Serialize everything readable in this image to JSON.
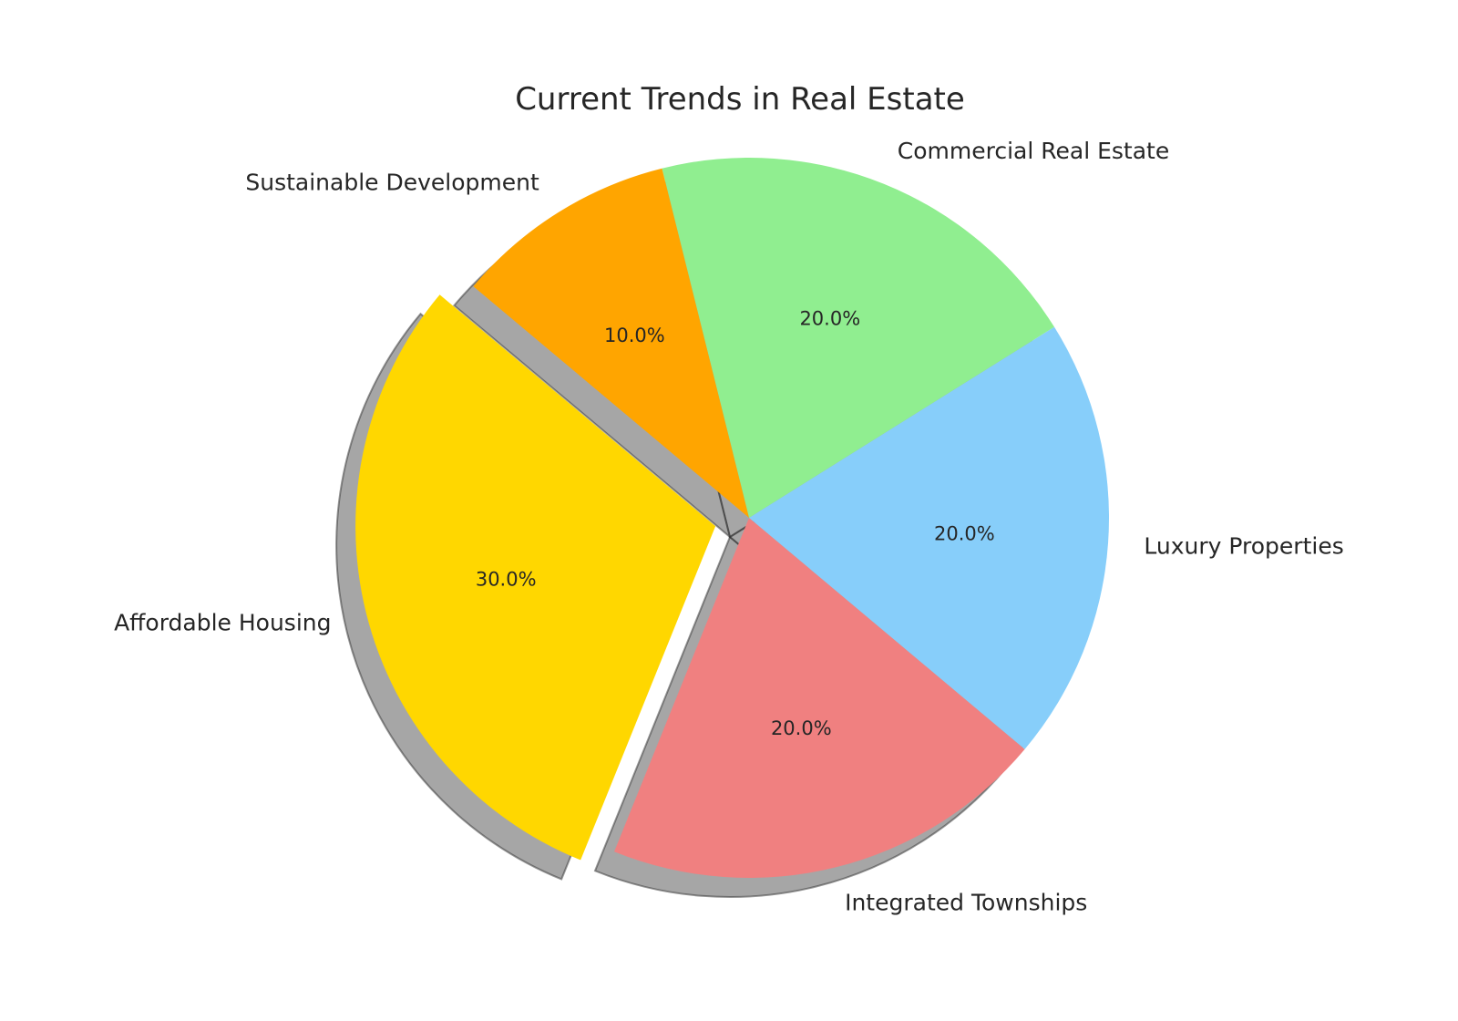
{
  "chart_data": {
    "type": "pie",
    "title": "Current Trends in Real Estate",
    "slices": [
      {
        "label": "Affordable Housing",
        "value": 30,
        "percent_label": "30.0%",
        "color": "#FFD700",
        "exploded": true
      },
      {
        "label": "Integrated Townships",
        "value": 20,
        "percent_label": "20.0%",
        "color": "#F08080",
        "exploded": false
      },
      {
        "label": "Luxury Properties",
        "value": 20,
        "percent_label": "20.0%",
        "color": "#87CEFA",
        "exploded": false
      },
      {
        "label": "Commercial Real Estate",
        "value": 20,
        "percent_label": "20.0%",
        "color": "#90EE90",
        "exploded": false
      },
      {
        "label": "Sustainable Development",
        "value": 10,
        "percent_label": "10.0%",
        "color": "#FFA500",
        "exploded": false
      }
    ],
    "shadow": true,
    "start_angle_deg": 140,
    "direction": "counterclockwise"
  }
}
